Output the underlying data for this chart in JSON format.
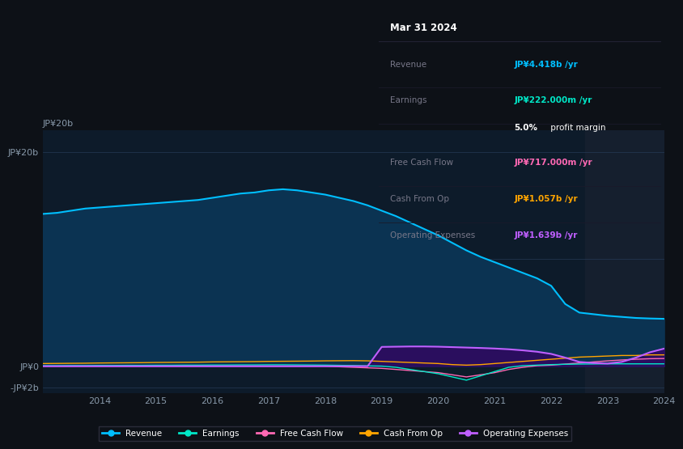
{
  "bg_color": "#0d1117",
  "plot_bg_color": "#0d1b2a",
  "grid_color": "#253a55",
  "years": [
    2013.0,
    2013.25,
    2013.5,
    2013.75,
    2014.0,
    2014.25,
    2014.5,
    2014.75,
    2015.0,
    2015.25,
    2015.5,
    2015.75,
    2016.0,
    2016.25,
    2016.5,
    2016.75,
    2017.0,
    2017.25,
    2017.5,
    2017.75,
    2018.0,
    2018.25,
    2018.5,
    2018.75,
    2019.0,
    2019.25,
    2019.5,
    2019.75,
    2020.0,
    2020.25,
    2020.5,
    2020.75,
    2021.0,
    2021.25,
    2021.5,
    2021.75,
    2022.0,
    2022.25,
    2022.5,
    2022.75,
    2023.0,
    2023.25,
    2023.5,
    2023.75,
    2024.0
  ],
  "revenue": [
    14.2,
    14.3,
    14.5,
    14.7,
    14.8,
    14.9,
    15.0,
    15.1,
    15.2,
    15.3,
    15.4,
    15.5,
    15.7,
    15.9,
    16.1,
    16.2,
    16.4,
    16.5,
    16.4,
    16.2,
    16.0,
    15.7,
    15.4,
    15.0,
    14.5,
    14.0,
    13.4,
    12.8,
    12.2,
    11.5,
    10.8,
    10.2,
    9.7,
    9.2,
    8.7,
    8.2,
    7.5,
    5.8,
    5.0,
    4.85,
    4.7,
    4.6,
    4.5,
    4.45,
    4.418
  ],
  "earnings": [
    0.05,
    0.05,
    0.06,
    0.06,
    0.07,
    0.07,
    0.08,
    0.08,
    0.09,
    0.09,
    0.1,
    0.1,
    0.11,
    0.11,
    0.12,
    0.12,
    0.13,
    0.13,
    0.12,
    0.11,
    0.1,
    0.08,
    0.06,
    0.03,
    0.01,
    -0.1,
    -0.3,
    -0.5,
    -0.7,
    -1.0,
    -1.3,
    -0.9,
    -0.5,
    -0.1,
    0.05,
    0.1,
    0.15,
    0.18,
    0.2,
    0.21,
    0.22,
    0.222,
    0.222,
    0.222,
    0.222
  ],
  "free_cash_flow": [
    0.0,
    0.0,
    0.0,
    0.0,
    0.0,
    0.0,
    0.0,
    0.0,
    0.0,
    0.0,
    0.0,
    0.0,
    0.0,
    0.0,
    0.0,
    0.0,
    0.0,
    0.0,
    0.0,
    0.0,
    0.0,
    -0.05,
    -0.1,
    -0.15,
    -0.2,
    -0.3,
    -0.4,
    -0.5,
    -0.6,
    -0.8,
    -1.0,
    -0.8,
    -0.6,
    -0.3,
    -0.1,
    0.05,
    0.1,
    0.2,
    0.3,
    0.4,
    0.5,
    0.58,
    0.65,
    0.7,
    0.717
  ],
  "cash_from_op": [
    0.25,
    0.26,
    0.27,
    0.28,
    0.3,
    0.31,
    0.32,
    0.33,
    0.35,
    0.36,
    0.37,
    0.38,
    0.4,
    0.41,
    0.42,
    0.43,
    0.45,
    0.46,
    0.47,
    0.48,
    0.5,
    0.51,
    0.52,
    0.5,
    0.45,
    0.4,
    0.35,
    0.3,
    0.25,
    0.15,
    0.1,
    0.15,
    0.25,
    0.35,
    0.45,
    0.55,
    0.65,
    0.75,
    0.85,
    0.9,
    0.95,
    1.0,
    1.0,
    1.057,
    1.057
  ],
  "operating_expenses": [
    0.0,
    0.0,
    0.0,
    0.0,
    0.0,
    0.0,
    0.0,
    0.0,
    0.0,
    0.0,
    0.0,
    0.0,
    0.0,
    0.0,
    0.0,
    0.0,
    0.0,
    0.0,
    0.0,
    0.0,
    0.0,
    0.0,
    0.0,
    0.0,
    1.8,
    1.82,
    1.84,
    1.84,
    1.82,
    1.78,
    1.74,
    1.7,
    1.65,
    1.58,
    1.48,
    1.35,
    1.15,
    0.8,
    0.4,
    0.3,
    0.25,
    0.4,
    0.8,
    1.3,
    1.639
  ],
  "revenue_color": "#00bfff",
  "earnings_color": "#00e8c8",
  "free_cash_flow_color": "#ff69b4",
  "cash_from_op_color": "#ffa500",
  "operating_expenses_color": "#bf5fff",
  "revenue_fill": "#0b3352",
  "operating_expenses_fill": "#2a0e5e",
  "ylim_min": -2.5,
  "ylim_max": 22.0,
  "ytick_labels": [
    "JP¥20b",
    "JP¥0",
    "-JP¥2b"
  ],
  "ytick_values": [
    20,
    0,
    -2
  ],
  "xtick_labels": [
    "2014",
    "2015",
    "2016",
    "2017",
    "2018",
    "2019",
    "2020",
    "2021",
    "2022",
    "2023",
    "2024"
  ],
  "xtick_values": [
    2014,
    2015,
    2016,
    2017,
    2018,
    2019,
    2020,
    2021,
    2022,
    2023,
    2024
  ],
  "legend_items": [
    "Revenue",
    "Earnings",
    "Free Cash Flow",
    "Cash From Op",
    "Operating Expenses"
  ],
  "legend_colors": [
    "#00bfff",
    "#00e8c8",
    "#ff69b4",
    "#ffa500",
    "#bf5fff"
  ],
  "tooltip_title": "Mar 31 2024",
  "tooltip_rows": [
    {
      "label": "Revenue",
      "value": "JP¥4.418b /yr",
      "color": "#00bfff"
    },
    {
      "label": "Earnings",
      "value": "JP¥222.000m /yr",
      "color": "#00e8c8"
    },
    {
      "label": "",
      "value": "5.0% profit margin",
      "color": "#ffffff"
    },
    {
      "label": "Free Cash Flow",
      "value": "JP¥717.000m /yr",
      "color": "#ff69b4"
    },
    {
      "label": "Cash From Op",
      "value": "JP¥1.057b /yr",
      "color": "#ffa500"
    },
    {
      "label": "Operating Expenses",
      "value": "JP¥1.639b /yr",
      "color": "#bf5fff"
    }
  ],
  "dark_region_start": 2022.6
}
